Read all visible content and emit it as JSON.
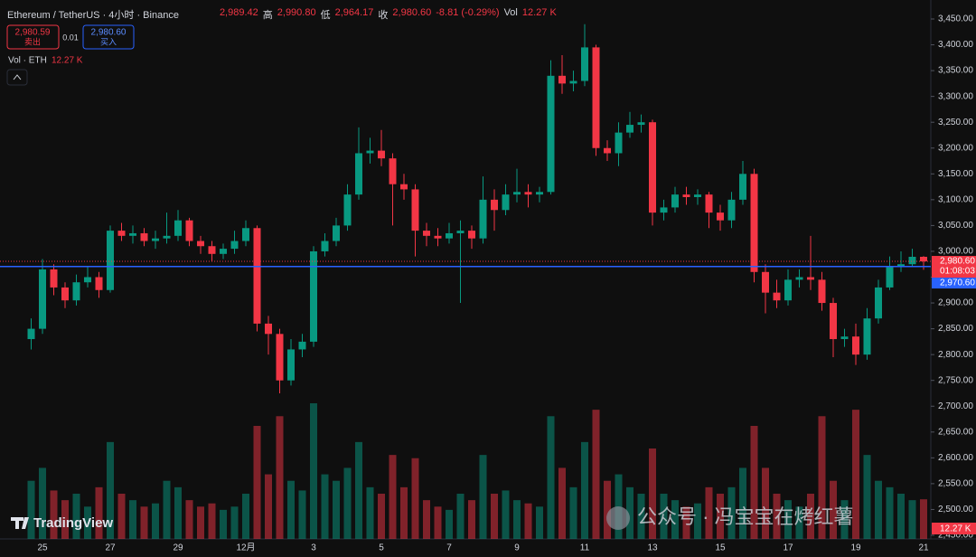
{
  "chart_data": {
    "type": "candlestick",
    "symbol": "Ethereum / TetherUS · 4小时 · Binance",
    "readout": [
      {
        "text": "2,989.42",
        "color": "#f23645"
      },
      {
        "text": "高",
        "color": "#d1d4dc"
      },
      {
        "text": "2,990.80",
        "color": "#f23645"
      },
      {
        "text": "低",
        "color": "#d1d4dc"
      },
      {
        "text": "2,964.17",
        "color": "#f23645"
      },
      {
        "text": "收",
        "color": "#d1d4dc"
      },
      {
        "text": "2,980.60",
        "color": "#f23645"
      },
      {
        "text": "-8.81 (-0.29%)",
        "color": "#f23645"
      },
      {
        "text": "Vol",
        "color": "#d1d4dc"
      },
      {
        "text": "12.27 K",
        "color": "#f23645"
      }
    ],
    "sell": {
      "price": "2,980.59",
      "label": "卖出"
    },
    "spread": "0.01",
    "buy": {
      "price": "2,980.60",
      "label": "买入"
    },
    "volume_legend": {
      "name": "Vol · ETH",
      "value": "12.27 K"
    },
    "volume_axis_label": "12.27 K",
    "last_price": {
      "value": 2980.6,
      "label": "2,980.60"
    },
    "countdown": "01:08:03",
    "marker_price": {
      "value": 2970.6,
      "label": "2,970.60"
    },
    "watermark": "公众号 · 冯宝宝在烤红薯",
    "brand": "TradingView",
    "up_color": "#089981",
    "down_color": "#f23645",
    "marker_color": "#2962ff",
    "categories": [
      null,
      "25",
      null,
      null,
      null,
      null,
      null,
      "27",
      null,
      null,
      null,
      null,
      null,
      "29",
      null,
      null,
      null,
      null,
      null,
      "12月",
      null,
      null,
      null,
      null,
      null,
      "3",
      null,
      null,
      null,
      null,
      null,
      "5",
      null,
      null,
      null,
      null,
      null,
      "7",
      null,
      null,
      null,
      null,
      null,
      "9",
      null,
      null,
      null,
      null,
      null,
      "11",
      null,
      null,
      null,
      null,
      null,
      "13",
      null,
      null,
      null,
      null,
      null,
      "15",
      null,
      null,
      null,
      null,
      null,
      "17",
      null,
      null,
      null,
      null,
      null,
      "19",
      null,
      null,
      null,
      null,
      null,
      "21"
    ],
    "open": [
      2830,
      2850,
      2965,
      2930,
      2905,
      2940,
      2950,
      2925,
      3040,
      3030,
      3035,
      3020,
      3025,
      3030,
      3060,
      3020,
      3010,
      2995,
      3005,
      3020,
      3045,
      2860,
      2840,
      2750,
      2810,
      2825,
      3000,
      3020,
      3050,
      3110,
      3190,
      3195,
      3180,
      3130,
      3120,
      3040,
      3030,
      3025,
      3035,
      3040,
      3025,
      3100,
      3080,
      3110,
      3115,
      3110,
      3115,
      3340,
      3325,
      3330,
      3395,
      3200,
      3190,
      3230,
      3245,
      3250,
      3075,
      3085,
      3110,
      3105,
      3110,
      3075,
      3060,
      3100,
      3150,
      2960,
      2920,
      2905,
      2945,
      2950,
      2945,
      2900,
      2830,
      2835,
      2800,
      2870,
      2930,
      2970,
      2975,
      2989.42
    ],
    "high": [
      2870,
      2985,
      2975,
      2940,
      2955,
      2970,
      2960,
      3050,
      3055,
      3050,
      3045,
      3040,
      3075,
      3080,
      3065,
      3030,
      3020,
      3015,
      3040,
      3060,
      3050,
      2875,
      2850,
      2830,
      2840,
      3010,
      3035,
      3065,
      3130,
      3240,
      3220,
      3235,
      3190,
      3150,
      3130,
      3055,
      3045,
      3055,
      3060,
      3050,
      3145,
      3120,
      3130,
      3160,
      3130,
      3125,
      3370,
      3380,
      3350,
      3440,
      3400,
      3215,
      3250,
      3270,
      3265,
      3255,
      3100,
      3125,
      3125,
      3120,
      3115,
      3090,
      3115,
      3175,
      3160,
      2975,
      2945,
      2965,
      2965,
      3030,
      2960,
      2910,
      2850,
      2860,
      2890,
      2945,
      2990,
      3000,
      3005,
      2990.8
    ],
    "low": [
      2810,
      2840,
      2915,
      2890,
      2895,
      2930,
      2910,
      2920,
      3020,
      3015,
      3010,
      3005,
      3015,
      3020,
      3010,
      2995,
      2980,
      2985,
      2995,
      3010,
      2845,
      2800,
      2725,
      2740,
      2795,
      2815,
      2990,
      3010,
      3040,
      3100,
      3170,
      3165,
      3050,
      3100,
      2990,
      3010,
      3010,
      3015,
      2900,
      3005,
      3015,
      3040,
      3070,
      3095,
      3085,
      3095,
      3110,
      3305,
      3310,
      3320,
      3185,
      3175,
      3165,
      3220,
      3230,
      3050,
      3060,
      3075,
      3090,
      3090,
      3045,
      3040,
      3045,
      3090,
      2940,
      2880,
      2890,
      2895,
      2930,
      2925,
      2885,
      2795,
      2815,
      2780,
      2790,
      2860,
      2925,
      2960,
      2970,
      2964.17
    ],
    "close": [
      2850,
      2965,
      2930,
      2905,
      2940,
      2950,
      2925,
      3040,
      3030,
      3035,
      3020,
      3025,
      3030,
      3060,
      3020,
      3010,
      2995,
      3005,
      3020,
      3045,
      2860,
      2840,
      2750,
      2810,
      2825,
      3000,
      3020,
      3050,
      3110,
      3190,
      3195,
      3180,
      3130,
      3120,
      3040,
      3030,
      3025,
      3035,
      3040,
      3025,
      3100,
      3080,
      3110,
      3115,
      3110,
      3115,
      3340,
      3325,
      3330,
      3395,
      3200,
      3190,
      3230,
      3245,
      3250,
      3075,
      3085,
      3110,
      3105,
      3110,
      3075,
      3060,
      3100,
      3150,
      2960,
      2920,
      2905,
      2945,
      2950,
      2945,
      2900,
      2830,
      2835,
      2800,
      2870,
      2930,
      2970,
      2975,
      2989.42,
      2980.6
    ],
    "volume": [
      18,
      22,
      15,
      12,
      14,
      10,
      16,
      30,
      14,
      12,
      10,
      11,
      18,
      16,
      12,
      10,
      11,
      9,
      10,
      14,
      35,
      20,
      38,
      18,
      15,
      42,
      20,
      18,
      22,
      30,
      16,
      14,
      26,
      16,
      25,
      12,
      10,
      9,
      14,
      12,
      26,
      14,
      15,
      12,
      11,
      10,
      38,
      22,
      16,
      30,
      40,
      18,
      20,
      16,
      14,
      28,
      14,
      12,
      10,
      11,
      16,
      14,
      16,
      22,
      35,
      22,
      14,
      12,
      10,
      14,
      38,
      18,
      12,
      40,
      26,
      18,
      16,
      14,
      12,
      12.27
    ],
    "ylim": [
      2450,
      3450
    ],
    "yticks": [
      {
        "value": 3450,
        "label": "3,450.00"
      },
      {
        "value": 3400,
        "label": "3,400.00"
      },
      {
        "value": 3350,
        "label": "3,350.00"
      },
      {
        "value": 3300,
        "label": "3,300.00"
      },
      {
        "value": 3250,
        "label": "3,250.00"
      },
      {
        "value": 3200,
        "label": "3,200.00"
      },
      {
        "value": 3150,
        "label": "3,150.00"
      },
      {
        "value": 3100,
        "label": "3,100.00"
      },
      {
        "value": 3050,
        "label": "3,050.00"
      },
      {
        "value": 3000,
        "label": "3,000.00"
      },
      {
        "value": 2950,
        "label": "2,950.00"
      },
      {
        "value": 2900,
        "label": "2,900.00"
      },
      {
        "value": 2850,
        "label": "2,850.00"
      },
      {
        "value": 2800,
        "label": "2,800.00"
      },
      {
        "value": 2750,
        "label": "2,750.00"
      },
      {
        "value": 2700,
        "label": "2,700.00"
      },
      {
        "value": 2650,
        "label": "2,650.00"
      },
      {
        "value": 2600,
        "label": "2,600.00"
      },
      {
        "value": 2550,
        "label": "2,550.00"
      },
      {
        "value": 2500,
        "label": "2,500.00"
      },
      {
        "value": 2450,
        "label": "2,450.00"
      }
    ],
    "grid": false
  }
}
